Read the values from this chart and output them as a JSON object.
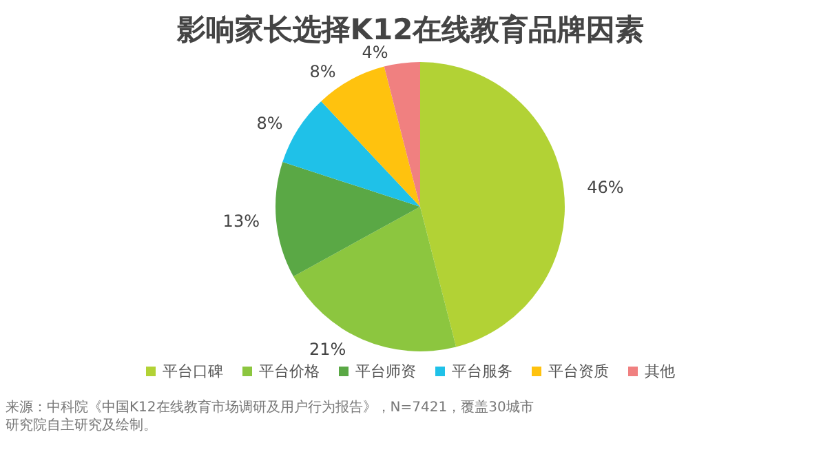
{
  "chart_data": {
    "type": "pie",
    "title": "影响家长选择K12在线教育品牌因素",
    "categories": [
      "平台口碑",
      "平台价格",
      "平台师资",
      "平台服务",
      "平台资质",
      "其他"
    ],
    "values": [
      46,
      21,
      13,
      8,
      8,
      4
    ],
    "colors": [
      "#b2d235",
      "#8cc63f",
      "#5aa845",
      "#1fc1e8",
      "#ffc20e",
      "#f08080"
    ],
    "value_labels": [
      "46%",
      "21%",
      "13%",
      "8%",
      "8%",
      "4%"
    ],
    "legend": "bottom",
    "annotations": [
      "来源：中科院《中国K12在线教育市场调研及用户行为报告》，N=7421，覆盖30城市",
      "研究院自主研究及绘制。"
    ]
  }
}
